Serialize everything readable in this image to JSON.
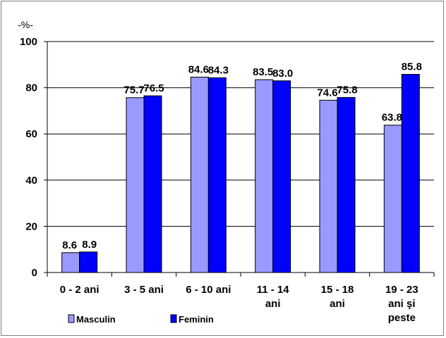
{
  "chart_data": {
    "type": "bar",
    "unit_label": "-%-",
    "categories": [
      [
        "0 - 2 ani"
      ],
      [
        "3 - 5 ani"
      ],
      [
        "6 - 10 ani"
      ],
      [
        "11 - 14",
        "ani"
      ],
      [
        "15 - 18",
        "ani"
      ],
      [
        "19 - 23",
        "ani şi",
        "peste"
      ]
    ],
    "series": [
      {
        "name": "Masculin",
        "color": "#9999ff",
        "values": [
          8.6,
          75.7,
          84.6,
          83.5,
          74.6,
          63.8
        ],
        "labels": [
          "8.6",
          "75.7",
          "84.6",
          "83.5",
          "74.6",
          "63.8"
        ]
      },
      {
        "name": "Feminin",
        "color": "#0000ff",
        "values": [
          8.9,
          76.5,
          84.3,
          83.0,
          75.8,
          85.8
        ],
        "labels": [
          "8.9",
          "76.5",
          "84.3",
          "83.0",
          "75.8",
          "85.8"
        ]
      }
    ],
    "ylim": [
      0,
      100
    ],
    "yticks": [
      "0",
      "20",
      "40",
      "60",
      "80",
      "100"
    ],
    "grid": true,
    "legend_position": "bottom-left"
  }
}
